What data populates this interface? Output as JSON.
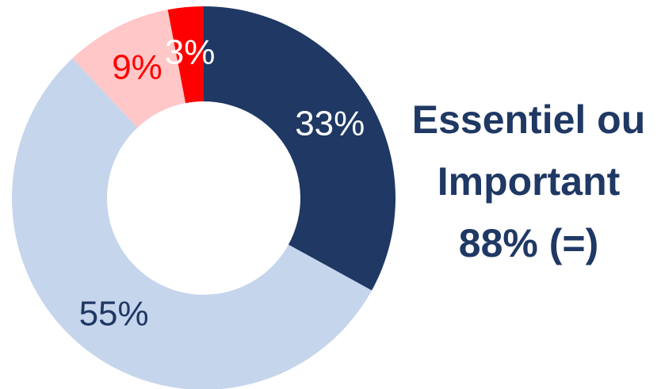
{
  "chart_data": {
    "type": "pie",
    "donut": true,
    "slices": [
      {
        "label": "33%",
        "value": 33,
        "color": "#1f3864",
        "label_color": "#ffffff"
      },
      {
        "label": "55%",
        "value": 55,
        "color": "#c5d5ec",
        "label_color": "#1f3864"
      },
      {
        "label": "9%",
        "value": 9,
        "color": "#ffc7c7",
        "label_color": "#ff0000"
      },
      {
        "label": "3%",
        "value": 3,
        "color": "#ff0000",
        "label_color": "#ffffff"
      }
    ]
  },
  "summary": {
    "line1": "Essentiel ou",
    "line2": "Important",
    "line3": "88% (=)"
  }
}
